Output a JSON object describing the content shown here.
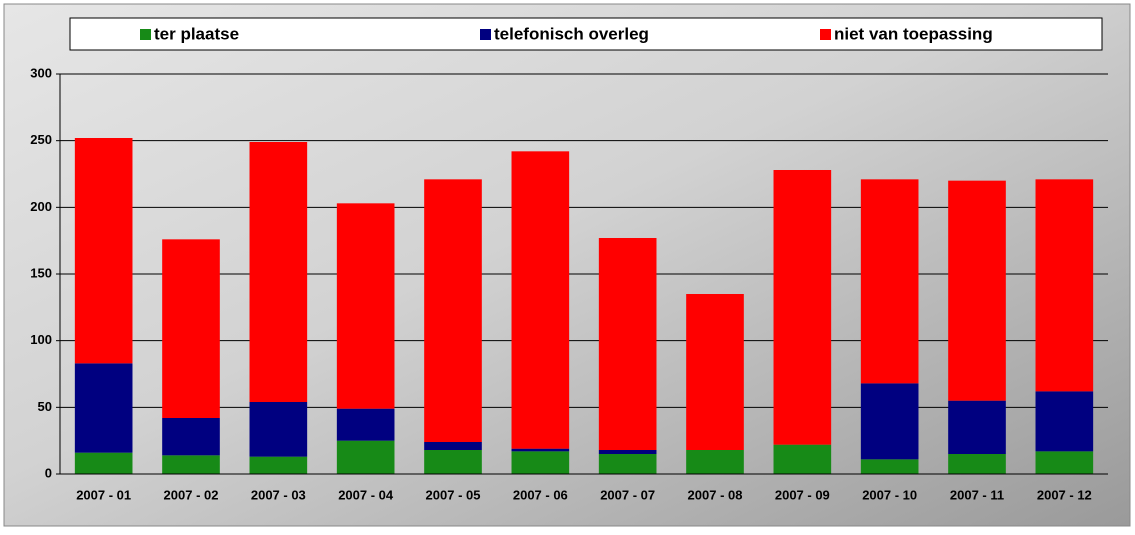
{
  "chart_data": {
    "type": "stacked_bar",
    "categories": [
      "2007 - 01",
      "2007 - 02",
      "2007 - 03",
      "2007 - 04",
      "2007 - 05",
      "2007 - 06",
      "2007 - 07",
      "2007 - 08",
      "2007 - 09",
      "2007 - 10",
      "2007 - 11",
      "2007 - 12"
    ],
    "series": [
      {
        "name": "ter plaatse",
        "color": "#178a17",
        "values": [
          16,
          14,
          13,
          25,
          18,
          17,
          15,
          18,
          22,
          11,
          15,
          17
        ]
      },
      {
        "name": "telefonisch overleg",
        "color": "#000080",
        "values": [
          67,
          28,
          41,
          24,
          6,
          2,
          3,
          0,
          0,
          57,
          40,
          45
        ]
      },
      {
        "name": "niet van toepassing",
        "color": "#ff0000",
        "values": [
          169,
          134,
          195,
          154,
          197,
          223,
          159,
          117,
          206,
          153,
          165,
          159
        ]
      }
    ],
    "ylim": [
      0,
      300
    ],
    "yticks": [
      0,
      50,
      100,
      150,
      200,
      250,
      300
    ],
    "grid": true,
    "legend": "top"
  }
}
